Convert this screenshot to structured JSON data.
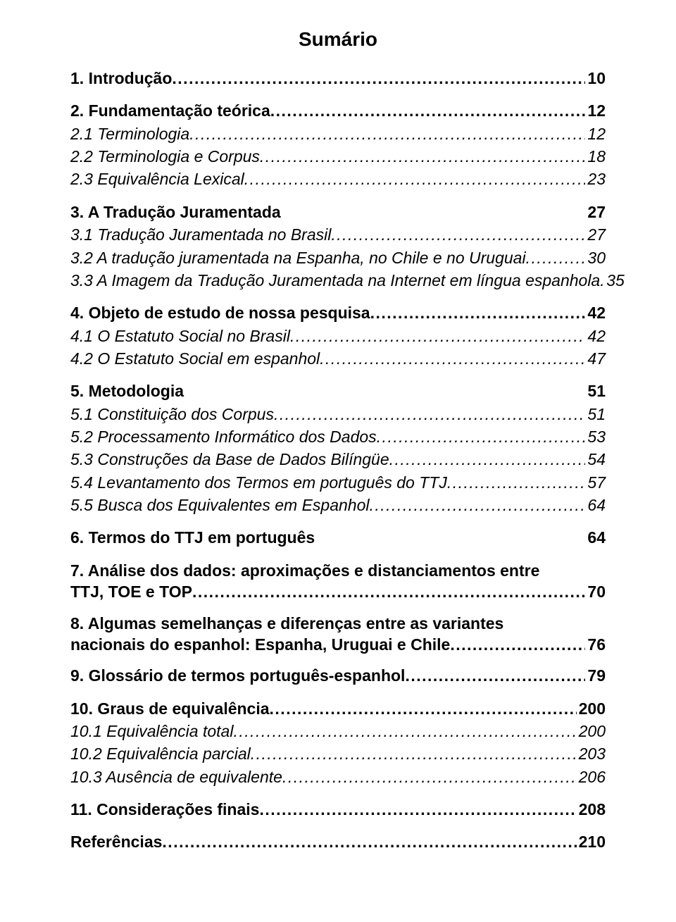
{
  "title": "Sumário",
  "entries": [
    {
      "type": "entry",
      "style": "bold",
      "label": "1. Introdução",
      "leader": "dots",
      "page": "10"
    },
    {
      "type": "gap"
    },
    {
      "type": "entry",
      "style": "bold",
      "label": "2. Fundamentação teórica",
      "leader": "dots",
      "page": "12"
    },
    {
      "type": "entry",
      "style": "italic",
      "label": "2.1 Terminologia ",
      "leader": "dots",
      "page": " 12"
    },
    {
      "type": "entry",
      "style": "italic",
      "label": "2.2 Terminologia e Corpus ",
      "leader": "dots",
      "page": " 18"
    },
    {
      "type": "entry",
      "style": "italic",
      "label": "2.3 Equivalência Lexical",
      "leader": "dots",
      "page": " 23"
    },
    {
      "type": "gap"
    },
    {
      "type": "entry",
      "style": "bold",
      "label": "3. A Tradução Juramentada",
      "leader": "none",
      "page": "27"
    },
    {
      "type": "entry",
      "style": "italic",
      "label": "3.1 Tradução Juramentada no Brasil",
      "leader": "dots",
      "page": " 27"
    },
    {
      "type": "entry",
      "style": "italic",
      "label": "3.2 A tradução juramentada na Espanha, no Chile e no Uruguai",
      "leader": "dots",
      "page": " 30"
    },
    {
      "type": "entry",
      "style": "italic",
      "label": "3.3 A Imagem da Tradução Juramentada na Internet em língua espanhola",
      "leader": "dots",
      "page": " 35"
    },
    {
      "type": "gap"
    },
    {
      "type": "entry",
      "style": "bold",
      "label": "4. Objeto de estudo de nossa pesquisa",
      "leader": "dots",
      "page": "42"
    },
    {
      "type": "entry",
      "style": "italic",
      "label": "4.1 O Estatuto Social no Brasil",
      "leader": "dots",
      "page": " 42"
    },
    {
      "type": "entry",
      "style": "italic",
      "label": "4.2 O Estatuto Social em espanhol",
      "leader": "dots",
      "page": " 47"
    },
    {
      "type": "gap"
    },
    {
      "type": "entry",
      "style": "bold",
      "label": "5. Metodologia",
      "leader": "none",
      "page": "51"
    },
    {
      "type": "entry",
      "style": "italic",
      "label": "5.1 Constituição dos Corpus",
      "leader": "dots",
      "page": " 51"
    },
    {
      "type": "entry",
      "style": "italic",
      "label": "5.2 Processamento Informático dos Dados",
      "leader": "dots",
      "page": " 53"
    },
    {
      "type": "entry",
      "style": "italic",
      "label": "5.3 Construções da Base de Dados Bilíngüe",
      "leader": "dots",
      "page": " 54"
    },
    {
      "type": "entry",
      "style": "italic",
      "label": "5.4 Levantamento dos Termos em português do TTJ",
      "leader": "dots",
      "page": " 57"
    },
    {
      "type": "entry",
      "style": "italic",
      "label": "5.5 Busca dos Equivalentes em Espanhol ",
      "leader": "dots",
      "page": " 64"
    },
    {
      "type": "gap"
    },
    {
      "type": "entry",
      "style": "bold",
      "label": "6. Termos do TTJ em português",
      "leader": "none",
      "page": "64"
    },
    {
      "type": "gap"
    },
    {
      "type": "multi",
      "style": "bold",
      "lines": [
        "7. Análise dos dados: aproximações e distanciamentos entre"
      ],
      "lastLabel": "TTJ, TOE e TOP",
      "leader": "dots",
      "page": "70"
    },
    {
      "type": "gap"
    },
    {
      "type": "multi",
      "style": "bold",
      "lines": [
        "8. Algumas semelhanças e diferenças entre as variantes"
      ],
      "lastLabel": "nacionais do espanhol: Espanha, Uruguai e Chile",
      "leader": "dots",
      "page": "76"
    },
    {
      "type": "gap"
    },
    {
      "type": "entry",
      "style": "bold",
      "label": "9. Glossário de termos português-espanhol",
      "leader": "dots",
      "page": "79"
    },
    {
      "type": "gap"
    },
    {
      "type": "entry",
      "style": "bold",
      "label": "10. Graus de equivalência",
      "leader": "dots",
      "page": "200"
    },
    {
      "type": "entry",
      "style": "italic",
      "label": "10.1 Equivalência total",
      "leader": "dots",
      "page": " 200"
    },
    {
      "type": "entry",
      "style": "italic",
      "label": "10.2 Equivalência parcial",
      "leader": "dots",
      "page": " 203"
    },
    {
      "type": "entry",
      "style": "italic",
      "label": "10.3 Ausência de equivalente",
      "leader": "dots",
      "page": " 206"
    },
    {
      "type": "gap"
    },
    {
      "type": "entry",
      "style": "bold",
      "label": "11. Considerações finais",
      "leader": "dots",
      "page": "208"
    },
    {
      "type": "gap"
    },
    {
      "type": "entry",
      "style": "bold",
      "label": "Referências",
      "leader": "dots",
      "page": "210"
    }
  ]
}
